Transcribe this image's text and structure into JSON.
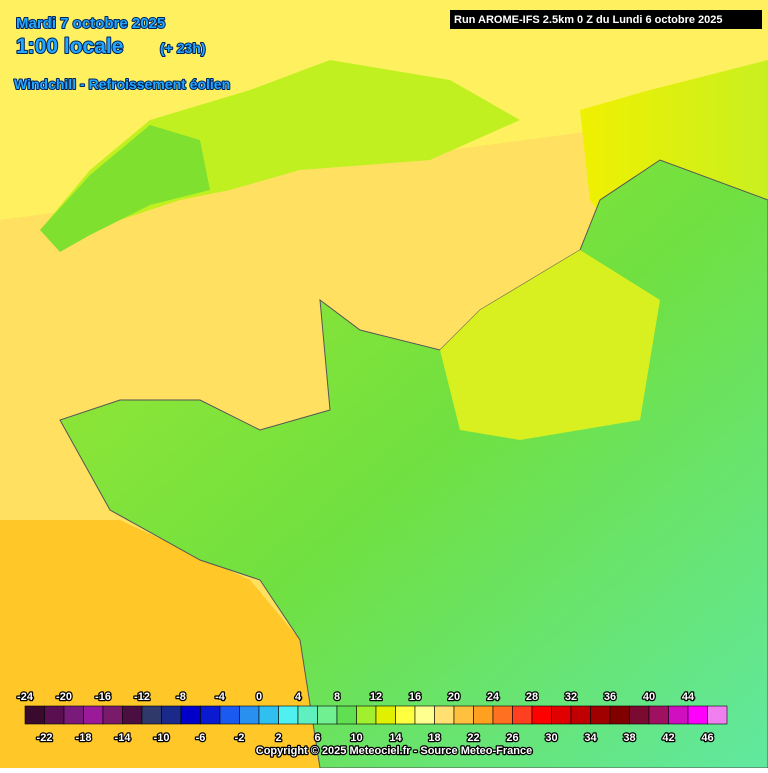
{
  "header": {
    "date": "Mardi 7 octobre 2025",
    "time": "1:00 locale",
    "lead": "(+ 23h)",
    "parameter": "Windchill - Refroissement éolien",
    "run": "Run AROME-IFS 2.5km 0 Z du Lundi 6 octobre 2025"
  },
  "legend": {
    "values": [
      -24,
      -22,
      -20,
      -18,
      -16,
      -14,
      -12,
      -10,
      -8,
      -6,
      -4,
      -2,
      0,
      2,
      4,
      6,
      8,
      10,
      12,
      14,
      16,
      18,
      20,
      22,
      24,
      26,
      28,
      30,
      32,
      34,
      36,
      38,
      40,
      42,
      44,
      46
    ],
    "colors": [
      "#3a0a2e",
      "#5a1050",
      "#7a1a7a",
      "#9a1a9a",
      "#7a1a6a",
      "#4a0f40",
      "#303a6a",
      "#1a2a8a",
      "#0000c8",
      "#0a1ad0",
      "#1a5af0",
      "#2a90f0",
      "#30c0f0",
      "#50f0f0",
      "#60f0c0",
      "#70f090",
      "#60e050",
      "#a0f030",
      "#e0f000",
      "#ffff40",
      "#ffff90",
      "#ffe070",
      "#ffc040",
      "#ffa020",
      "#ff7020",
      "#ff4020",
      "#ff0000",
      "#e00000",
      "#c00000",
      "#a00000",
      "#800000",
      "#7a0a30",
      "#a01060",
      "#d010c0",
      "#ff00ff",
      "#f080f0"
    ]
  },
  "footer": {
    "copyright": "Copyright © 2025 Meteociel.fr - Source Meteo-France"
  }
}
